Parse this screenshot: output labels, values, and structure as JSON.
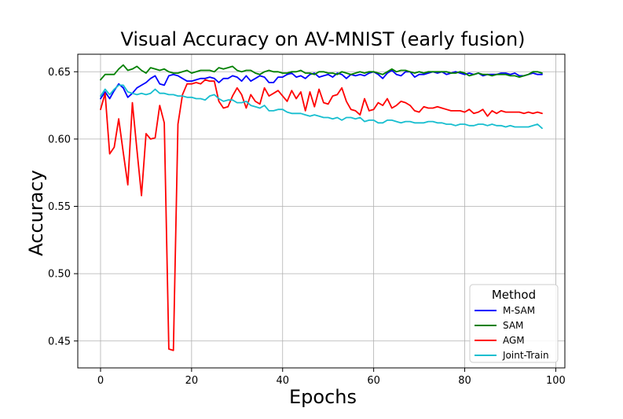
{
  "chart_data": {
    "type": "line",
    "title": "Visual Accuracy on AV-MNIST (early fusion)",
    "xlabel": "Epochs",
    "ylabel": "Accuracy",
    "xlim": [
      -5,
      102
    ],
    "ylim": [
      0.43,
      0.663
    ],
    "xticks": [
      0,
      20,
      40,
      60,
      80,
      100
    ],
    "yticks": [
      0.45,
      0.5,
      0.55,
      0.6,
      0.65
    ],
    "xtick_labels": [
      "0",
      "20",
      "40",
      "60",
      "80",
      "100"
    ],
    "ytick_labels": [
      "0.45",
      "0.50",
      "0.55",
      "0.60",
      "0.65"
    ],
    "grid": true,
    "legend": {
      "title": "Method",
      "placement": "lower right"
    },
    "x": [
      0,
      1,
      2,
      3,
      4,
      5,
      6,
      7,
      8,
      9,
      10,
      11,
      12,
      13,
      14,
      15,
      16,
      17,
      18,
      19,
      20,
      21,
      22,
      23,
      24,
      25,
      26,
      27,
      28,
      29,
      30,
      31,
      32,
      33,
      34,
      35,
      36,
      37,
      38,
      39,
      40,
      41,
      42,
      43,
      44,
      45,
      46,
      47,
      48,
      49,
      50,
      51,
      52,
      53,
      54,
      55,
      56,
      57,
      58,
      59,
      60,
      61,
      62,
      63,
      64,
      65,
      66,
      67,
      68,
      69,
      70,
      71,
      72,
      73,
      74,
      75,
      76,
      77,
      78,
      79,
      80,
      81,
      82,
      83,
      84,
      85,
      86,
      87,
      88,
      89,
      90,
      91,
      92,
      93,
      94,
      95,
      96,
      97
    ],
    "series": [
      {
        "name": "M-SAM",
        "color": "#0000ff",
        "values": [
          0.63,
          0.635,
          0.63,
          0.636,
          0.641,
          0.638,
          0.631,
          0.634,
          0.638,
          0.64,
          0.642,
          0.645,
          0.647,
          0.641,
          0.64,
          0.647,
          0.648,
          0.647,
          0.645,
          0.643,
          0.643,
          0.644,
          0.645,
          0.645,
          0.646,
          0.645,
          0.642,
          0.645,
          0.645,
          0.647,
          0.646,
          0.643,
          0.647,
          0.643,
          0.645,
          0.647,
          0.646,
          0.642,
          0.642,
          0.646,
          0.646,
          0.648,
          0.649,
          0.646,
          0.647,
          0.645,
          0.648,
          0.649,
          0.646,
          0.647,
          0.648,
          0.646,
          0.649,
          0.648,
          0.645,
          0.648,
          0.647,
          0.648,
          0.647,
          0.649,
          0.65,
          0.648,
          0.645,
          0.649,
          0.651,
          0.648,
          0.647,
          0.65,
          0.65,
          0.646,
          0.648,
          0.648,
          0.649,
          0.65,
          0.649,
          0.65,
          0.648,
          0.649,
          0.65,
          0.649,
          0.648,
          0.649,
          0.648,
          0.649,
          0.647,
          0.648,
          0.648,
          0.648,
          0.649,
          0.649,
          0.648,
          0.649,
          0.647,
          0.647,
          0.648,
          0.649,
          0.648,
          0.648
        ]
      },
      {
        "name": "SAM",
        "color": "#008000",
        "values": [
          0.644,
          0.648,
          0.648,
          0.648,
          0.652,
          0.655,
          0.651,
          0.652,
          0.654,
          0.651,
          0.649,
          0.653,
          0.652,
          0.651,
          0.652,
          0.65,
          0.649,
          0.649,
          0.65,
          0.651,
          0.649,
          0.65,
          0.651,
          0.651,
          0.651,
          0.65,
          0.653,
          0.652,
          0.653,
          0.654,
          0.651,
          0.65,
          0.651,
          0.651,
          0.649,
          0.648,
          0.65,
          0.651,
          0.65,
          0.65,
          0.649,
          0.649,
          0.65,
          0.65,
          0.651,
          0.649,
          0.649,
          0.648,
          0.65,
          0.65,
          0.649,
          0.649,
          0.648,
          0.65,
          0.649,
          0.648,
          0.649,
          0.65,
          0.649,
          0.65,
          0.65,
          0.649,
          0.648,
          0.65,
          0.652,
          0.65,
          0.651,
          0.651,
          0.65,
          0.649,
          0.65,
          0.649,
          0.65,
          0.65,
          0.65,
          0.65,
          0.65,
          0.649,
          0.649,
          0.65,
          0.649,
          0.647,
          0.648,
          0.649,
          0.648,
          0.648,
          0.647,
          0.648,
          0.648,
          0.648,
          0.647,
          0.647,
          0.646,
          0.647,
          0.648,
          0.65,
          0.65,
          0.649
        ]
      },
      {
        "name": "AGM",
        "color": "#ff0000",
        "values": [
          0.622,
          0.634,
          0.589,
          0.594,
          0.615,
          0.59,
          0.566,
          0.627,
          0.592,
          0.558,
          0.604,
          0.6,
          0.601,
          0.625,
          0.612,
          0.444,
          0.443,
          0.611,
          0.633,
          0.641,
          0.641,
          0.642,
          0.641,
          0.644,
          0.643,
          0.643,
          0.628,
          0.623,
          0.624,
          0.632,
          0.638,
          0.633,
          0.623,
          0.633,
          0.628,
          0.626,
          0.638,
          0.632,
          0.634,
          0.636,
          0.632,
          0.628,
          0.636,
          0.63,
          0.635,
          0.621,
          0.635,
          0.624,
          0.637,
          0.627,
          0.626,
          0.632,
          0.633,
          0.638,
          0.628,
          0.622,
          0.621,
          0.618,
          0.63,
          0.621,
          0.622,
          0.627,
          0.625,
          0.63,
          0.623,
          0.625,
          0.628,
          0.627,
          0.625,
          0.621,
          0.62,
          0.624,
          0.623,
          0.623,
          0.624,
          0.623,
          0.622,
          0.621,
          0.621,
          0.621,
          0.62,
          0.622,
          0.619,
          0.62,
          0.622,
          0.617,
          0.621,
          0.619,
          0.621,
          0.62,
          0.62,
          0.62,
          0.62,
          0.619,
          0.62,
          0.619,
          0.62,
          0.619
        ]
      },
      {
        "name": "Joint-Train",
        "color": "#17becf",
        "values": [
          0.632,
          0.637,
          0.633,
          0.637,
          0.64,
          0.64,
          0.635,
          0.634,
          0.633,
          0.634,
          0.633,
          0.634,
          0.637,
          0.634,
          0.634,
          0.633,
          0.633,
          0.632,
          0.632,
          0.631,
          0.631,
          0.63,
          0.63,
          0.629,
          0.632,
          0.633,
          0.63,
          0.628,
          0.629,
          0.629,
          0.627,
          0.627,
          0.628,
          0.625,
          0.624,
          0.623,
          0.625,
          0.621,
          0.621,
          0.622,
          0.622,
          0.62,
          0.619,
          0.619,
          0.619,
          0.618,
          0.617,
          0.618,
          0.617,
          0.616,
          0.616,
          0.615,
          0.616,
          0.614,
          0.616,
          0.616,
          0.615,
          0.616,
          0.613,
          0.614,
          0.614,
          0.612,
          0.612,
          0.614,
          0.614,
          0.613,
          0.612,
          0.613,
          0.613,
          0.612,
          0.612,
          0.612,
          0.613,
          0.613,
          0.612,
          0.612,
          0.611,
          0.611,
          0.61,
          0.611,
          0.611,
          0.61,
          0.61,
          0.611,
          0.611,
          0.61,
          0.611,
          0.61,
          0.61,
          0.609,
          0.61,
          0.609,
          0.609,
          0.609,
          0.609,
          0.61,
          0.611,
          0.608
        ]
      }
    ]
  }
}
